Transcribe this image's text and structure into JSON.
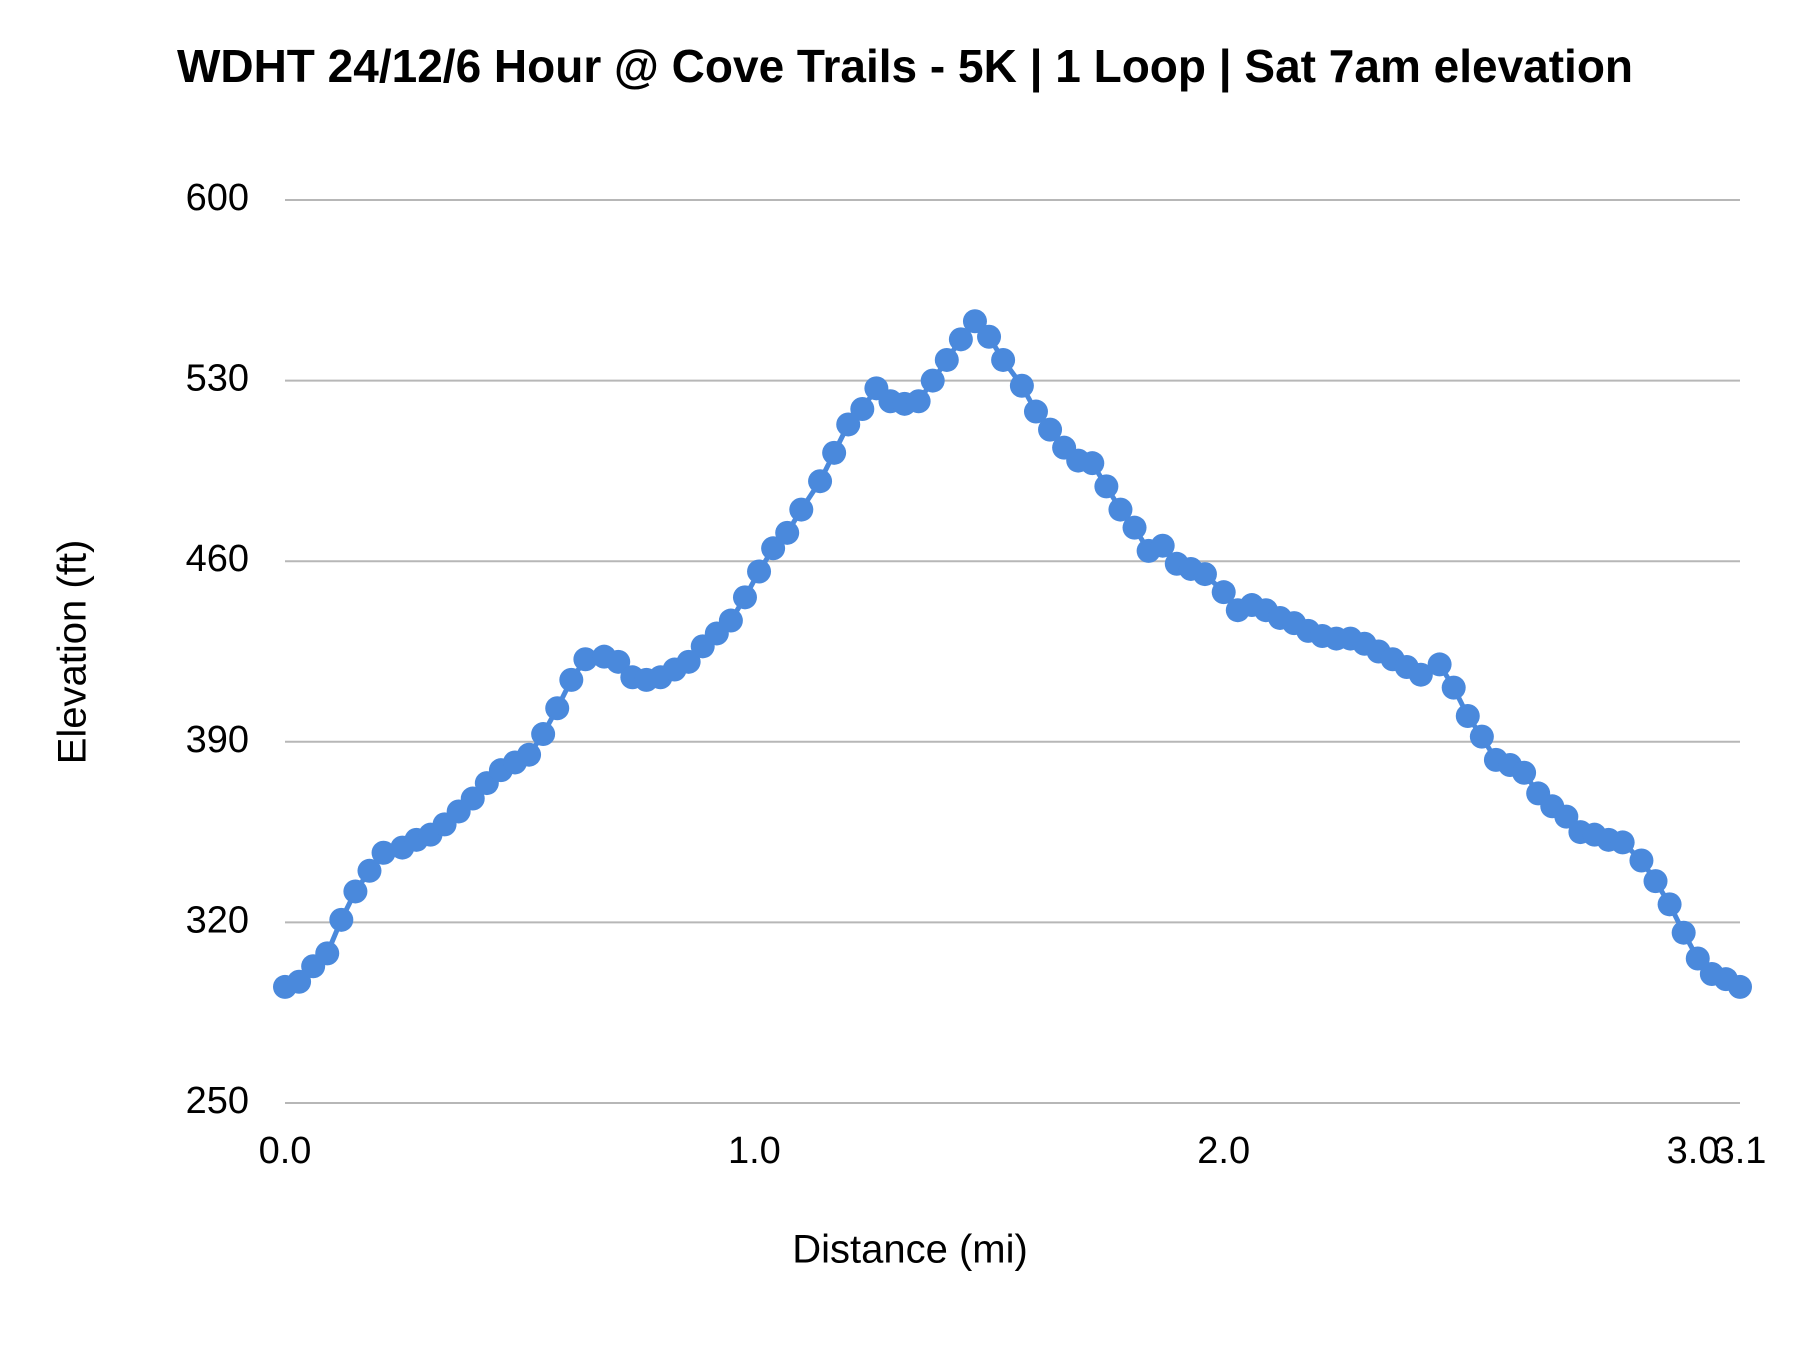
{
  "chart_data": {
    "type": "line",
    "title": "WDHT 24/12/6 Hour @ Cove Trails - 5K | 1 Loop | Sat 7am elevation",
    "xlabel": "Distance (mi)",
    "ylabel": "Elevation (ft)",
    "x": [
      0,
      0.03,
      0.06,
      0.09,
      0.12,
      0.15,
      0.18,
      0.21,
      0.25,
      0.28,
      0.31,
      0.34,
      0.37,
      0.4,
      0.43,
      0.46,
      0.49,
      0.52,
      0.55,
      0.58,
      0.61,
      0.64,
      0.68,
      0.71,
      0.74,
      0.77,
      0.8,
      0.83,
      0.86,
      0.89,
      0.92,
      0.95,
      0.98,
      1.01,
      1.04,
      1.07,
      1.1,
      1.14,
      1.17,
      1.2,
      1.23,
      1.26,
      1.29,
      1.32,
      1.35,
      1.38,
      1.41,
      1.44,
      1.47,
      1.5,
      1.53,
      1.57,
      1.6,
      1.63,
      1.66,
      1.69,
      1.72,
      1.75,
      1.78,
      1.81,
      1.84,
      1.87,
      1.9,
      1.93,
      1.96,
      2.0,
      2.03,
      2.06,
      2.09,
      2.12,
      2.15,
      2.18,
      2.21,
      2.24,
      2.27,
      2.3,
      2.33,
      2.36,
      2.39,
      2.42,
      2.46,
      2.49,
      2.52,
      2.55,
      2.58,
      2.61,
      2.64,
      2.67,
      2.7,
      2.73,
      2.76,
      2.79,
      2.82,
      2.85,
      2.89,
      2.92,
      2.95,
      2.98,
      3.01,
      3.04,
      3.07,
      3.1
    ],
    "series": [
      {
        "name": "Elevation",
        "color": "#4a89dc",
        "values": [
          295,
          297,
          303,
          308,
          321,
          332,
          340,
          347,
          349,
          352,
          354,
          358,
          363,
          368,
          374,
          379,
          382,
          385,
          393,
          403,
          414,
          422,
          423,
          421,
          415,
          414,
          415,
          418,
          421,
          427,
          432,
          437,
          446,
          456,
          465,
          471,
          480,
          491,
          502,
          513,
          519,
          527,
          522,
          521,
          522,
          530,
          538,
          546,
          553,
          547,
          538,
          528,
          518,
          511,
          504,
          499,
          498,
          489,
          480,
          473,
          464,
          466,
          459,
          457,
          455,
          448,
          441,
          443,
          441,
          438,
          436,
          433,
          431,
          430,
          430,
          428,
          425,
          422,
          419,
          416,
          420,
          411,
          400,
          392,
          383,
          381,
          378,
          370,
          365,
          361,
          355,
          354,
          352,
          351,
          344,
          336,
          327,
          316,
          306,
          300,
          298,
          295
        ]
      }
    ],
    "xlim": [
      0,
      3.1
    ],
    "xticks": [
      {
        "value": 0,
        "label": "0.0"
      },
      {
        "value": 1,
        "label": "1.0"
      },
      {
        "value": 2,
        "label": "2.0"
      },
      {
        "value": 3,
        "label": "3.0"
      },
      3.1
    ],
    "ylim": [
      250,
      600
    ],
    "yticks": [
      250,
      320,
      390,
      460,
      530,
      600
    ],
    "grid": true
  }
}
